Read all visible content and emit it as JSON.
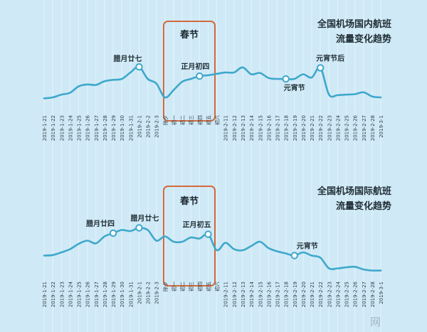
{
  "chart_data": [
    {
      "type": "line",
      "title_lines": [
        "全国机场国内航班",
        "流量变化趋势"
      ],
      "x": [
        "2019-1-21",
        "2019-1-22",
        "2019-1-23",
        "2019-1-24",
        "2019-1-25",
        "2019-1-26",
        "2019-1-27",
        "2019-1-28",
        "2019-1-29",
        "2019-1-30",
        "2019-1-31",
        "2019-2-1",
        "2019-2-2",
        "2019-2-3",
        "除夕",
        "初一",
        "初二",
        "初三",
        "初四",
        "初五",
        "初六",
        "2019-2-11",
        "2019-2-12",
        "2019-2-13",
        "2019-2-14",
        "2019-2-15",
        "2019-2-16",
        "2019-2-17",
        "2019-2-18",
        "2019-2-19",
        "2019-2-20",
        "2019-2-21",
        "2019-2-22",
        "2019-2-23",
        "2019-2-24",
        "2019-2-25",
        "2019-2-26",
        "2019-2-27",
        "2019-2-28",
        "2019-3-1"
      ],
      "values": [
        0.18,
        0.2,
        0.26,
        0.3,
        0.44,
        0.48,
        0.47,
        0.55,
        0.58,
        0.6,
        0.74,
        0.86,
        0.6,
        0.5,
        0.2,
        0.36,
        0.54,
        0.6,
        0.66,
        0.68,
        0.71,
        0.74,
        0.74,
        0.85,
        0.7,
        0.73,
        0.62,
        0.6,
        0.6,
        0.6,
        0.7,
        0.63,
        0.84,
        0.26,
        0.25,
        0.26,
        0.27,
        0.31,
        0.22,
        0.2
      ],
      "ylim": [
        0,
        1
      ],
      "highlight_box_label": "春节",
      "annotations": [
        {
          "label": "腊月廿七",
          "index": 11
        },
        {
          "label": "正月初四",
          "index": 18
        },
        {
          "label": "元宵节",
          "index": 28
        },
        {
          "label": "元宵节后",
          "index": 32
        }
      ],
      "colors": {
        "line": "#3ea8cb",
        "box": "#d36a3c"
      }
    },
    {
      "type": "line",
      "title_lines": [
        "全国机场国际航班",
        "流量变化趋势"
      ],
      "x": [
        "2019-1-21",
        "2019-1-22",
        "2019-1-23",
        "2019-1-24",
        "2019-1-25",
        "2019-1-26",
        "2019-1-27",
        "2019-1-28",
        "2019-1-29",
        "2019-1-30",
        "2019-1-31",
        "2019-2-1",
        "2019-2-2",
        "2019-2-3",
        "除夕",
        "初一",
        "初二",
        "初三",
        "初四",
        "初五",
        "初六",
        "2019-2-11",
        "2019-2-12",
        "2019-2-13",
        "2019-2-14",
        "2019-2-15",
        "2019-2-16",
        "2019-2-17",
        "2019-2-18",
        "2019-2-19",
        "2019-2-20",
        "2019-2-21",
        "2019-2-22",
        "2019-2-23",
        "2019-2-24",
        "2019-2-25",
        "2019-2-26",
        "2019-2-27",
        "2019-2-28",
        "2019-3-1"
      ],
      "values": [
        0.34,
        0.35,
        0.4,
        0.46,
        0.56,
        0.62,
        0.57,
        0.7,
        0.76,
        0.82,
        0.8,
        0.86,
        0.82,
        0.62,
        0.7,
        0.6,
        0.6,
        0.68,
        0.66,
        0.74,
        0.44,
        0.58,
        0.46,
        0.44,
        0.52,
        0.6,
        0.48,
        0.42,
        0.38,
        0.34,
        0.4,
        0.34,
        0.3,
        0.1,
        0.1,
        0.12,
        0.13,
        0.08,
        0.06,
        0.06
      ],
      "ylim": [
        0,
        1
      ],
      "highlight_box_label": "春节",
      "annotations": [
        {
          "label": "腊月廿四",
          "index": 8
        },
        {
          "label": "腊月廿七",
          "index": 11
        },
        {
          "label": "正月初五",
          "index": 19
        },
        {
          "label": "元宵节",
          "index": 29
        }
      ],
      "colors": {
        "line": "#3ea8cb",
        "box": "#d36a3c"
      }
    }
  ],
  "watermark": "网"
}
